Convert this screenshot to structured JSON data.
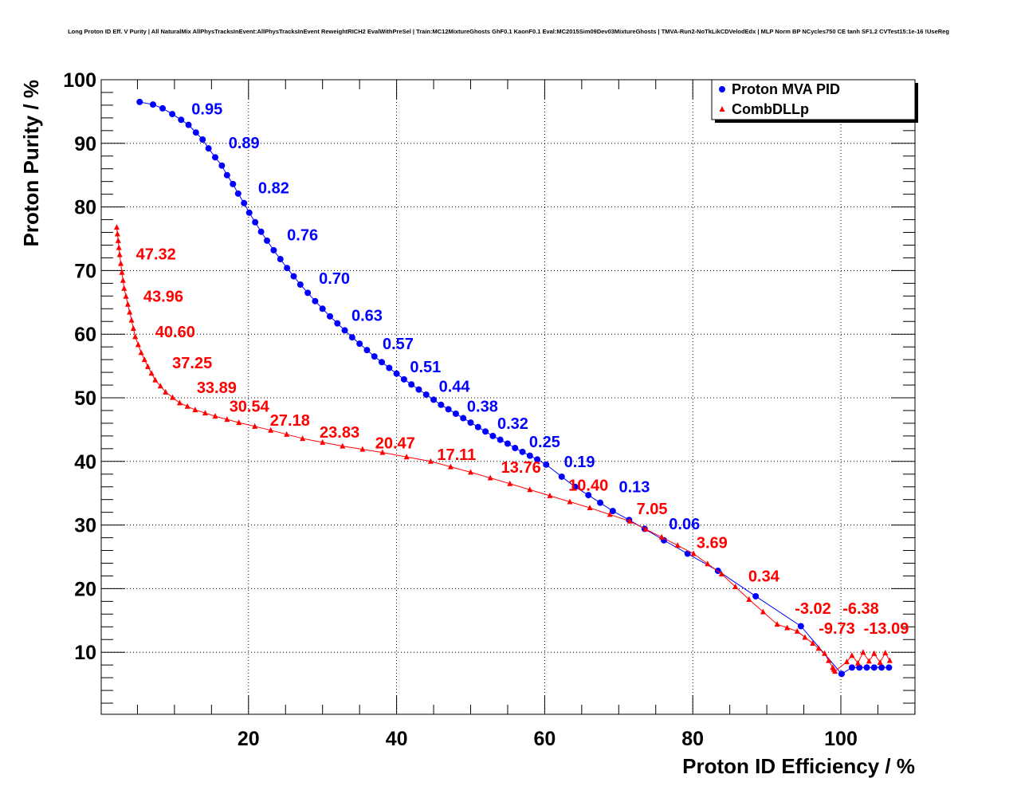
{
  "chart_data": {
    "type": "scatter",
    "title": "Long Proton ID Eff. V Purity | All NaturalMix AllPhysTracksInEvent:AllPhysTracksInEvent ReweightRICH2 EvalWithPreSel | Train:MC12MixtureGhosts GhF0.1 KaonF0.1 Eval:MC2015Sim09Dev03MixtureGhosts | TMVA-Run2-NoTkLikCDVelodEdx | MLP Norm BP NCycles750 CE tanh SF1.2 CVTest15:1e-16 !UseReg",
    "xlabel": "Proton ID Efficiency / %",
    "ylabel": "Proton Purity / %",
    "xlim": [
      0,
      110
    ],
    "ylim": [
      0,
      100
    ],
    "xticks": [
      "20",
      "40",
      "60",
      "80",
      "100"
    ],
    "yticks": [
      "10",
      "20",
      "30",
      "40",
      "50",
      "60",
      "70",
      "80",
      "90",
      "100"
    ],
    "grid": true,
    "legend_position": "top-right",
    "series": [
      {
        "name": "Proton MVA PID",
        "color": "#0000ff",
        "marker": "circle",
        "points": [
          [
            5.3,
            96.5
          ],
          [
            7.1,
            96.1
          ],
          [
            8.4,
            95.5
          ],
          [
            9.7,
            94.6
          ],
          [
            10.9,
            93.7
          ],
          [
            11.9,
            92.9
          ],
          [
            12.9,
            91.7
          ],
          [
            13.8,
            90.6
          ],
          [
            14.6,
            89.2
          ],
          [
            15.5,
            87.8
          ],
          [
            16.4,
            86.5
          ],
          [
            17.1,
            85.0
          ],
          [
            17.9,
            83.6
          ],
          [
            18.6,
            82.1
          ],
          [
            19.4,
            80.6
          ],
          [
            20.1,
            79.1
          ],
          [
            20.9,
            77.6
          ],
          [
            21.7,
            76.1
          ],
          [
            22.5,
            74.7
          ],
          [
            23.4,
            73.2
          ],
          [
            24.3,
            71.8
          ],
          [
            25.2,
            70.4
          ],
          [
            26.1,
            69.1
          ],
          [
            27.0,
            67.8
          ],
          [
            28.0,
            66.5
          ],
          [
            29.0,
            65.2
          ],
          [
            30.0,
            64.0
          ],
          [
            31.0,
            62.8
          ],
          [
            32.0,
            61.7
          ],
          [
            33.0,
            60.6
          ],
          [
            34.0,
            59.5
          ],
          [
            35.0,
            58.5
          ],
          [
            36.0,
            57.5
          ],
          [
            37.0,
            56.5
          ],
          [
            38.0,
            55.6
          ],
          [
            39.0,
            54.7
          ],
          [
            40.0,
            53.8
          ],
          [
            41.0,
            52.9
          ],
          [
            42.0,
            52.1
          ],
          [
            43.0,
            51.3
          ],
          [
            44.0,
            50.5
          ],
          [
            45.0,
            49.7
          ],
          [
            46.0,
            48.9
          ],
          [
            47.0,
            48.2
          ],
          [
            48.0,
            47.5
          ],
          [
            49.0,
            46.8
          ],
          [
            50.0,
            46.1
          ],
          [
            51.0,
            45.4
          ],
          [
            52.0,
            44.7
          ],
          [
            53.0,
            44.0
          ],
          [
            54.0,
            43.4
          ],
          [
            55.0,
            42.8
          ],
          [
            56.0,
            42.1
          ],
          [
            57.0,
            41.5
          ],
          [
            58.0,
            40.9
          ],
          [
            59.0,
            40.3
          ],
          [
            60.2,
            39.5
          ],
          [
            62.3,
            37.6
          ],
          [
            64.1,
            36.0
          ],
          [
            65.9,
            34.7
          ],
          [
            67.5,
            33.5
          ],
          [
            69.2,
            32.2
          ],
          [
            71.4,
            30.8
          ],
          [
            73.5,
            29.4
          ],
          [
            76.1,
            27.6
          ],
          [
            79.3,
            25.5
          ],
          [
            83.4,
            22.8
          ],
          [
            88.5,
            18.8
          ],
          [
            94.6,
            14.1
          ],
          [
            100.1,
            6.6
          ],
          [
            101.5,
            7.6
          ],
          [
            102.5,
            7.6
          ],
          [
            103.5,
            7.6
          ],
          [
            104.5,
            7.6
          ],
          [
            105.5,
            7.6
          ],
          [
            106.5,
            7.6
          ]
        ],
        "labels": [
          {
            "text": "0.95",
            "x": 14.4,
            "y": 95.4
          },
          {
            "text": "0.89",
            "x": 19.4,
            "y": 90.1
          },
          {
            "text": "0.82",
            "x": 23.4,
            "y": 83.0
          },
          {
            "text": "0.76",
            "x": 27.3,
            "y": 75.6
          },
          {
            "text": "0.70",
            "x": 31.6,
            "y": 68.8
          },
          {
            "text": "0.63",
            "x": 36.0,
            "y": 63.0
          },
          {
            "text": "0.57",
            "x": 40.2,
            "y": 58.5
          },
          {
            "text": "0.51",
            "x": 43.9,
            "y": 54.9
          },
          {
            "text": "0.44",
            "x": 47.8,
            "y": 51.8
          },
          {
            "text": "0.38",
            "x": 51.6,
            "y": 48.7
          },
          {
            "text": "0.32",
            "x": 55.7,
            "y": 46.0
          },
          {
            "text": "0.25",
            "x": 60.0,
            "y": 43.1
          },
          {
            "text": "0.19",
            "x": 64.7,
            "y": 40.0
          },
          {
            "text": "0.13",
            "x": 70.5,
            "y": 36.0
          },
          {
            "text": "0.06",
            "x": 80.6,
            "y": 28.7
          }
        ]
      },
      {
        "name": "CombDLLp",
        "color": "#ff0000",
        "marker": "triangle",
        "points": [
          [
            2.2,
            76.8
          ],
          [
            2.4,
            74.7
          ],
          [
            2.6,
            72.5
          ],
          [
            2.9,
            69.7
          ],
          [
            3.2,
            67.2
          ],
          [
            3.7,
            64.7
          ],
          [
            4.2,
            62.2
          ],
          [
            4.7,
            59.6
          ],
          [
            5.5,
            57.1
          ],
          [
            6.4,
            54.9
          ],
          [
            7.4,
            52.8
          ],
          [
            8.8,
            50.9
          ],
          [
            10.7,
            49.2
          ],
          [
            12.8,
            48.1
          ],
          [
            15.5,
            47.1
          ],
          [
            18.7,
            46.1
          ],
          [
            23.0,
            44.9
          ],
          [
            27.3,
            43.6
          ],
          [
            32.7,
            42.4
          ],
          [
            38.1,
            41.4
          ],
          [
            44.6,
            40.0
          ],
          [
            50.0,
            38.3
          ],
          [
            55.3,
            36.5
          ],
          [
            60.7,
            34.6
          ],
          [
            66.1,
            32.7
          ],
          [
            71.5,
            30.6
          ],
          [
            75.8,
            28.1
          ],
          [
            80.1,
            25.5
          ],
          [
            83.9,
            22.3
          ],
          [
            87.6,
            18.3
          ],
          [
            91.4,
            14.4
          ],
          [
            94.1,
            13.3
          ],
          [
            96.2,
            11.4
          ],
          [
            97.8,
            9.8
          ],
          [
            98.9,
            7.6
          ],
          [
            99.2,
            7.0
          ],
          [
            100.8,
            8.5
          ],
          [
            101.5,
            9.5
          ],
          [
            102.3,
            8.3
          ],
          [
            103.0,
            10.0
          ],
          [
            103.8,
            8.6
          ],
          [
            104.5,
            9.8
          ],
          [
            105.3,
            8.4
          ],
          [
            106.0,
            9.9
          ],
          [
            106.6,
            8.7
          ]
        ],
        "labels": [
          {
            "text": "47.32",
            "x": 7.5,
            "y": 72.6
          },
          {
            "text": "43.96",
            "x": 8.5,
            "y": 66.0
          },
          {
            "text": "40.60",
            "x": 10.1,
            "y": 60.4
          },
          {
            "text": "37.25",
            "x": 12.4,
            "y": 55.5
          },
          {
            "text": "33.89",
            "x": 15.7,
            "y": 51.6
          },
          {
            "text": "30.54",
            "x": 20.1,
            "y": 48.7
          },
          {
            "text": "27.18",
            "x": 25.6,
            "y": 46.5
          },
          {
            "text": "23.83",
            "x": 32.3,
            "y": 44.6
          },
          {
            "text": "20.47",
            "x": 39.8,
            "y": 42.9
          },
          {
            "text": "17.11",
            "x": 48.1,
            "y": 41.1
          },
          {
            "text": "13.76",
            "x": 56.8,
            "y": 39.1
          },
          {
            "text": "10.40",
            "x": 65.9,
            "y": 36.3
          },
          {
            "text": "7.05",
            "x": 74.5,
            "y": 32.6
          },
          {
            "text": "3.69",
            "x": 82.6,
            "y": 28.0
          },
          {
            "text": "0.34",
            "x": 89.6,
            "y": 22.0
          },
          {
            "text": "-3.02",
            "x": 98.8,
            "y": 14.1
          },
          {
            "text": "-6.38",
            "x": 101.6,
            "y": 12.6
          },
          {
            "text": "-9.73",
            "x": 103.8,
            "y": 11.4
          },
          {
            "text": "-13.09",
            "x": 105.7,
            "y": 10.8
          }
        ]
      }
    ]
  }
}
